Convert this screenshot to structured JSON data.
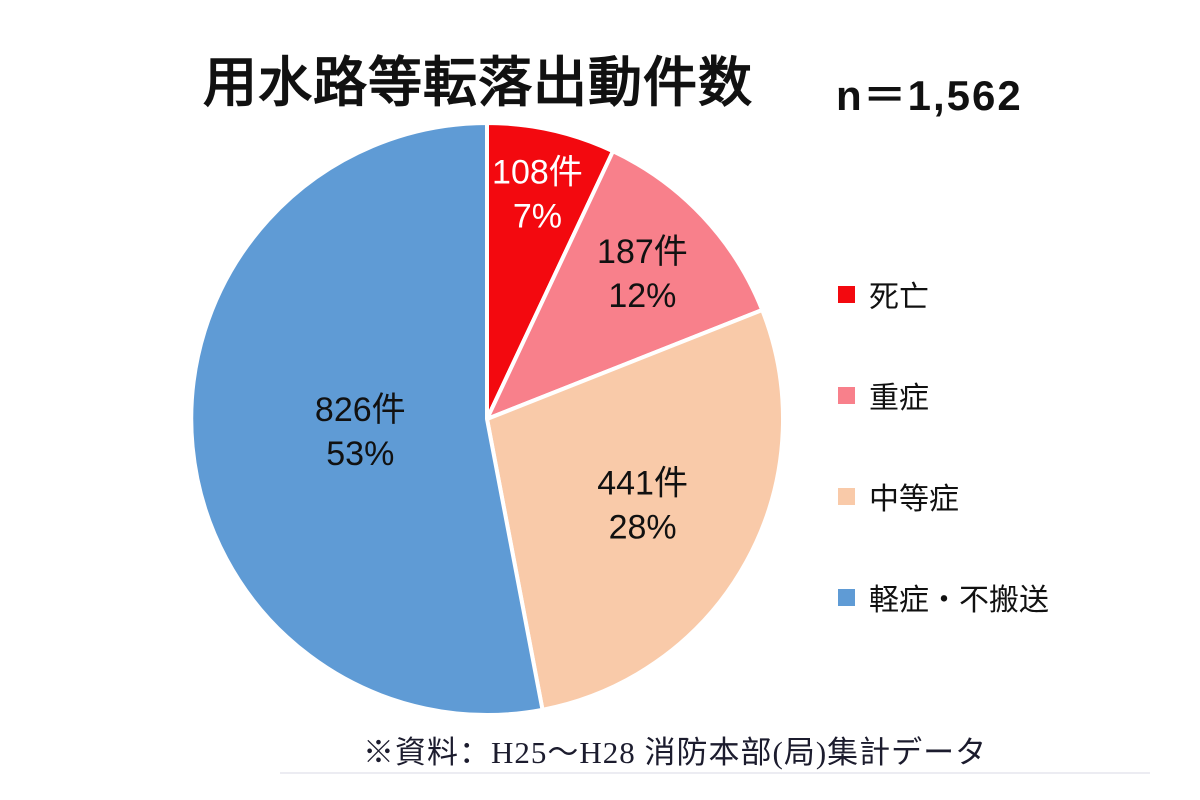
{
  "chart_data": {
    "type": "pie",
    "title": "用水路等転落出動件数",
    "n_label": "n＝1,562",
    "n_total": 1562,
    "unit": "件",
    "source_note": "※資料：H25～H28 消防本部(局)集計データ",
    "legend_position": "right",
    "start_angle": "top",
    "direction": "clockwise",
    "background_color": "#ffffff",
    "slices": [
      {
        "id": "death",
        "label": "死亡",
        "count": 108,
        "pct": 7,
        "count_label": "108件",
        "pct_label": "7%",
        "color": "#f3090f",
        "text_color": "#ffffff",
        "label_r": 0.78
      },
      {
        "id": "severe",
        "label": "重症",
        "count": 187,
        "pct": 12,
        "count_label": "187件",
        "pct_label": "12%",
        "color": "#f8808b",
        "text_color": "#111111",
        "label_r": 0.72
      },
      {
        "id": "moderate",
        "label": "中等症",
        "count": 441,
        "pct": 28,
        "count_label": "441件",
        "pct_label": "28%",
        "color": "#f9caa9",
        "text_color": "#111111",
        "label_r": 0.6
      },
      {
        "id": "minor",
        "label": "軽症・不搬送",
        "count": 826,
        "pct": 53,
        "count_label": "826件",
        "pct_label": "53%",
        "color": "#5f9bd5",
        "text_color": "#111111",
        "label_r": 0.43
      }
    ]
  }
}
